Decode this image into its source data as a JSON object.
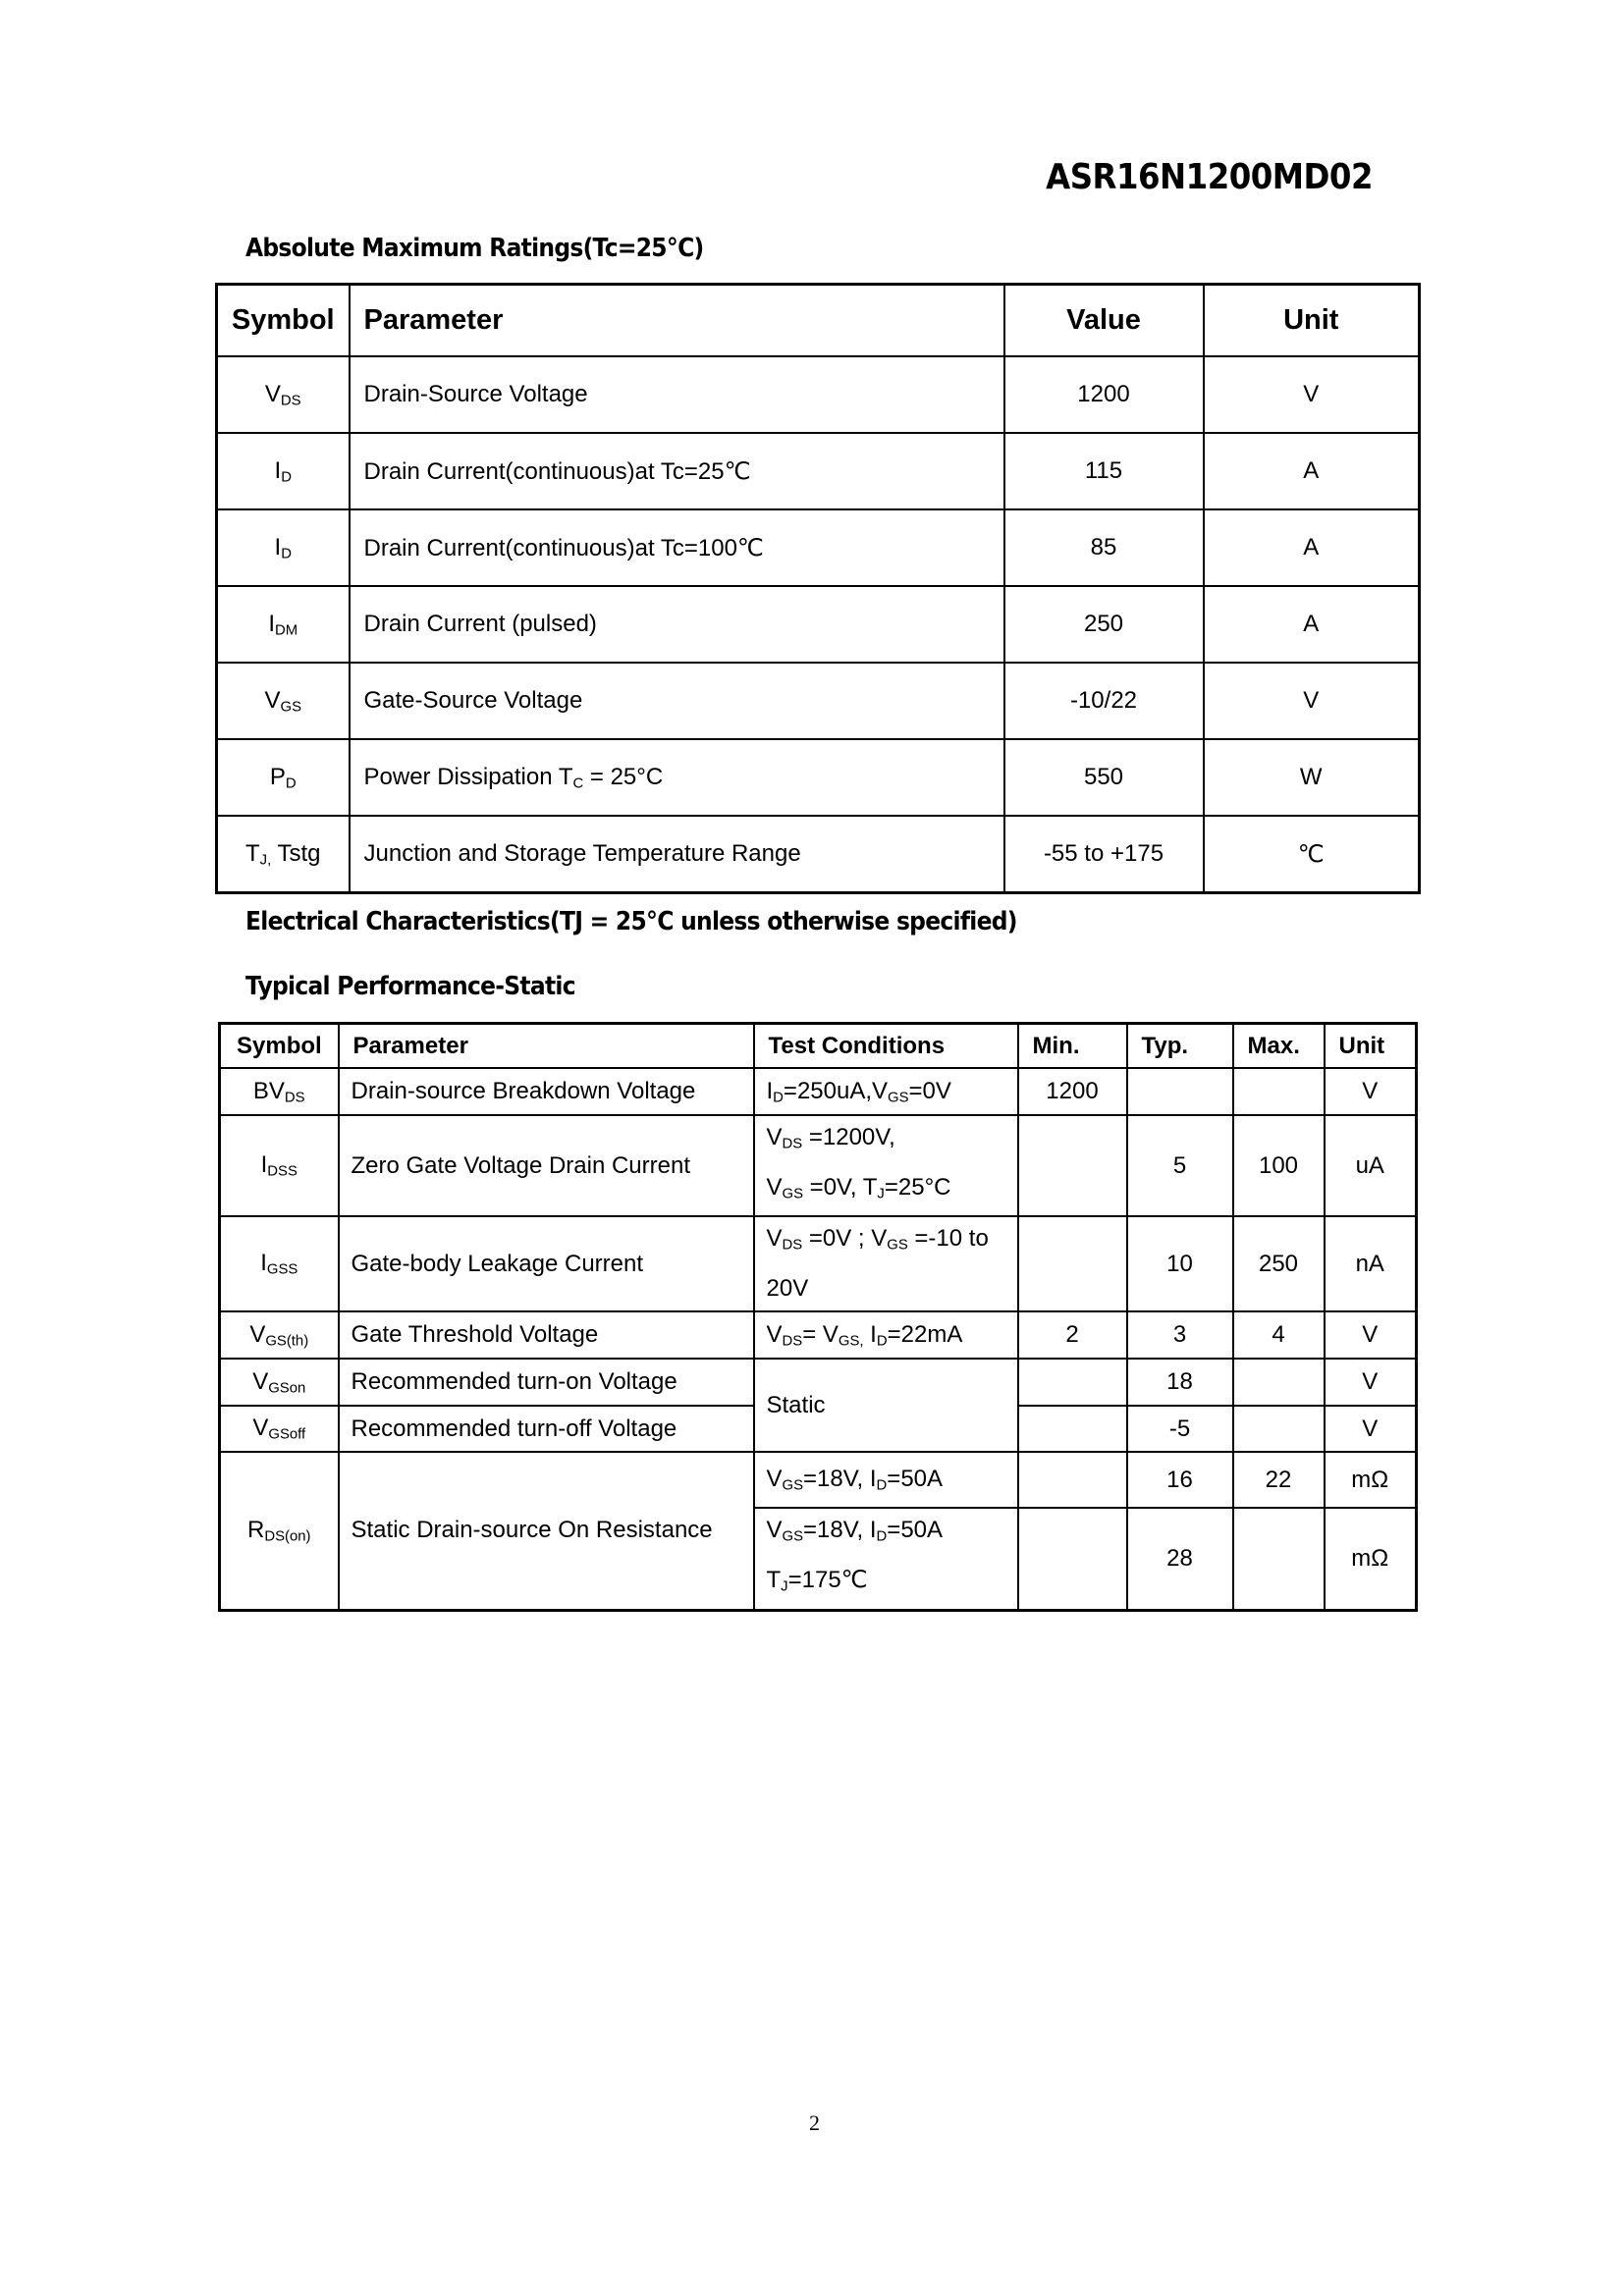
{
  "header": {
    "part_number": "ASR16N1200MD02"
  },
  "abs_max": {
    "heading": "Absolute Maximum Ratings(Tc=25℃)",
    "columns": [
      "Symbol",
      "Parameter",
      "Value",
      "Unit"
    ],
    "rows": [
      {
        "symbol": [
          "V",
          {
            "sub": "DS"
          }
        ],
        "parameter": "Drain-Source Voltage",
        "value": "1200",
        "unit": "V"
      },
      {
        "symbol": [
          "I",
          {
            "sub": "D"
          }
        ],
        "parameter": "Drain Current(continuous)at Tc=25℃",
        "value": "115",
        "unit": "A"
      },
      {
        "symbol": [
          "I",
          {
            "sub": "D"
          }
        ],
        "parameter": "Drain Current(continuous)at Tc=100℃",
        "value": "85",
        "unit": "A"
      },
      {
        "symbol": [
          "I",
          {
            "sub": "DM"
          }
        ],
        "parameter": "Drain Current (pulsed)",
        "value": "250",
        "unit": "A"
      },
      {
        "symbol": [
          "V",
          {
            "sub": "GS"
          }
        ],
        "parameter": "Gate-Source Voltage",
        "value": "-10/22",
        "unit": "V"
      },
      {
        "symbol": [
          "P",
          {
            "sub": "D"
          }
        ],
        "parameter": [
          "Power Dissipation T",
          {
            "sub": "C"
          },
          " = 25°C"
        ],
        "value": "550",
        "unit": "W"
      },
      {
        "symbol": [
          "T",
          {
            "sub": "J,"
          },
          " Tstg"
        ],
        "parameter": "Junction and Storage Temperature Range",
        "value": "-55 to +175",
        "unit": "℃"
      }
    ]
  },
  "electrical": {
    "heading": "Electrical Characteristics(TJ = 25℃  unless otherwise specified)"
  },
  "static": {
    "heading": "Typical Performance-Static",
    "columns": [
      "Symbol",
      "Parameter",
      "Test Conditions",
      "Min.",
      "Typ.",
      "Max.",
      "Unit"
    ],
    "rows": {
      "bvdss": {
        "symbol": [
          "BV",
          {
            "sub": "DS"
          }
        ],
        "parameter": "Drain-source Breakdown Voltage",
        "conditions": [
          "I",
          {
            "sub": "D"
          },
          "=250uA,V",
          {
            "sub": "GS"
          },
          "=0V"
        ],
        "min": "1200",
        "typ": "",
        "max": "",
        "unit": "V"
      },
      "idss": {
        "symbol": [
          "I",
          {
            "sub": "DSS"
          }
        ],
        "parameter": "Zero Gate Voltage Drain Current",
        "conditions": [
          "V",
          {
            "sub": "DS"
          },
          " =1200V,",
          {
            "br": 1
          },
          "V",
          {
            "sub": "GS"
          },
          " =0V, T",
          {
            "sub": "J"
          },
          "=25°C"
        ],
        "min": "",
        "typ": "5",
        "max": "100",
        "unit": "uA"
      },
      "igss": {
        "symbol": [
          "I",
          {
            "sub": "GSS"
          }
        ],
        "parameter": "Gate-body Leakage Current",
        "conditions": [
          "V",
          {
            "sub": "DS"
          },
          " =0V ; V",
          {
            "sub": "GS"
          },
          " =-10 to",
          {
            "br": 1
          },
          "20V"
        ],
        "min": "",
        "typ": "10",
        "max": "250",
        "unit": "nA"
      },
      "vgsth": {
        "symbol": [
          "V",
          {
            "sub": "GS(th)"
          }
        ],
        "parameter": "Gate Threshold Voltage",
        "conditions": [
          "V",
          {
            "sub": "DS"
          },
          "= V",
          {
            "sub": "GS,"
          },
          " I",
          {
            "sub": "D"
          },
          "=22mA"
        ],
        "min": "2",
        "typ": "3",
        "max": "4",
        "unit": "V"
      },
      "vgson": {
        "symbol": [
          "V",
          {
            "sub": "GSon"
          }
        ],
        "parameter": "Recommended turn-on Voltage",
        "conditions": "Static",
        "min": "",
        "typ": "18",
        "max": "",
        "unit": "V"
      },
      "vgsoff": {
        "symbol": [
          "V",
          {
            "sub": "GSoff"
          }
        ],
        "parameter": "Recommended turn-off Voltage",
        "min": "",
        "typ": "-5",
        "max": "",
        "unit": "V"
      },
      "rdson": {
        "symbol": [
          "R",
          {
            "sub": "DS(on)"
          }
        ],
        "parameter": "Static Drain-source On Resistance",
        "sub_rows": [
          {
            "conditions": [
              "V",
              {
                "sub": "GS"
              },
              "=18V, I",
              {
                "sub": "D"
              },
              "=50A"
            ],
            "min": "",
            "typ": "16",
            "max": "22",
            "unit": "mΩ"
          },
          {
            "conditions": [
              "V",
              {
                "sub": "GS"
              },
              "=18V, I",
              {
                "sub": "D"
              },
              "=50A",
              {
                "br": 1
              },
              "T",
              {
                "sub": "J"
              },
              "=175℃"
            ],
            "min": "",
            "typ": "28",
            "max": "",
            "unit": "mΩ"
          }
        ]
      }
    }
  },
  "footer": {
    "page_number": "2"
  }
}
